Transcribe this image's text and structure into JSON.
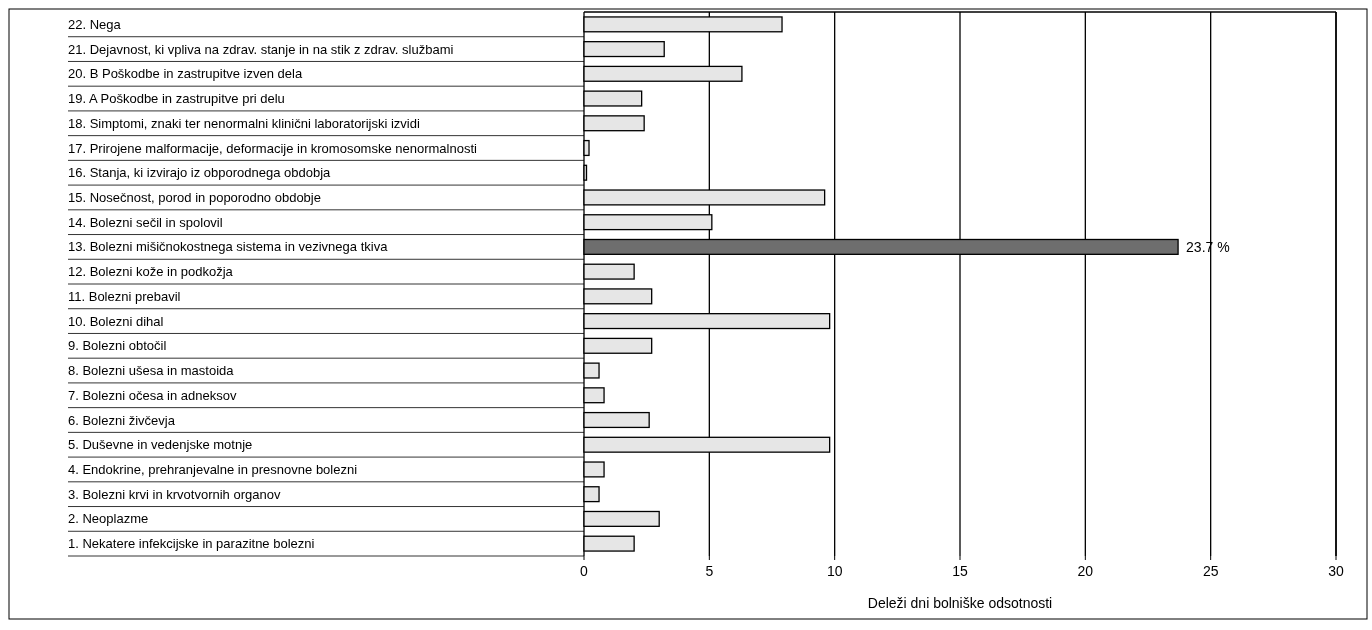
{
  "chart_data": {
    "type": "bar",
    "orientation": "horizontal",
    "xlabel": "Deleži dni bolniške odsotnosti",
    "categories": [
      "22. Nega",
      "21. Dejavnost, ki vpliva na zdrav. stanje in na stik z zdrav. službami",
      "20. B Poškodbe in zastrupitve izven dela",
      "19. A Poškodbe in zastrupitve pri delu",
      "18. Simptomi, znaki ter nenormalni klinični laboratorijski izvidi",
      "17. Prirojene malformacije, deformacije in kromosomske nenormalnosti",
      "16. Stanja, ki izvirajo iz obporodnega obdobja",
      "15. Nosečnost, porod in poporodno obdobje",
      "14. Bolezni sečil in spolovil",
      "13. Bolezni mišičnokostnega sistema in vezivnega tkiva",
      "12. Bolezni kože in podkožja",
      "11. Bolezni prebavil",
      "10. Bolezni dihal",
      "9. Bolezni obtočil",
      "8. Bolezni ušesa in mastoida",
      "7. Bolezni očesa in adneksov",
      "6. Bolezni živčevja",
      "5. Duševne in vedenjske motnje",
      "4. Endokrine, prehranjevalne in presnovne bolezni",
      "3. Bolezni krvi in krvotvornih organov",
      "2. Neoplazme",
      "1. Nekatere infekcijske in parazitne bolezni"
    ],
    "values": [
      7.9,
      3.2,
      6.3,
      2.3,
      2.4,
      0.2,
      0.1,
      9.6,
      5.1,
      23.7,
      2.0,
      2.7,
      9.8,
      2.7,
      0.6,
      0.8,
      2.6,
      9.8,
      0.8,
      0.6,
      3.0,
      2.0
    ],
    "colors": [
      "#e6e6e6",
      "#e6e6e6",
      "#e6e6e6",
      "#e6e6e6",
      "#e6e6e6",
      "#e6e6e6",
      "#e6e6e6",
      "#e6e6e6",
      "#e6e6e6",
      "#6e6e6e",
      "#e6e6e6",
      "#e6e6e6",
      "#e6e6e6",
      "#e6e6e6",
      "#e6e6e6",
      "#e6e6e6",
      "#e6e6e6",
      "#e6e6e6",
      "#e6e6e6",
      "#e6e6e6",
      "#e6e6e6",
      "#e6e6e6"
    ],
    "value_labels": [
      null,
      null,
      null,
      null,
      null,
      null,
      null,
      null,
      null,
      "23.7 %",
      null,
      null,
      null,
      null,
      null,
      null,
      null,
      null,
      null,
      null,
      null,
      null
    ],
    "xlim": [
      0,
      30
    ],
    "xticks": [
      0,
      5,
      10,
      15,
      20,
      25,
      30
    ],
    "grid": "x"
  }
}
